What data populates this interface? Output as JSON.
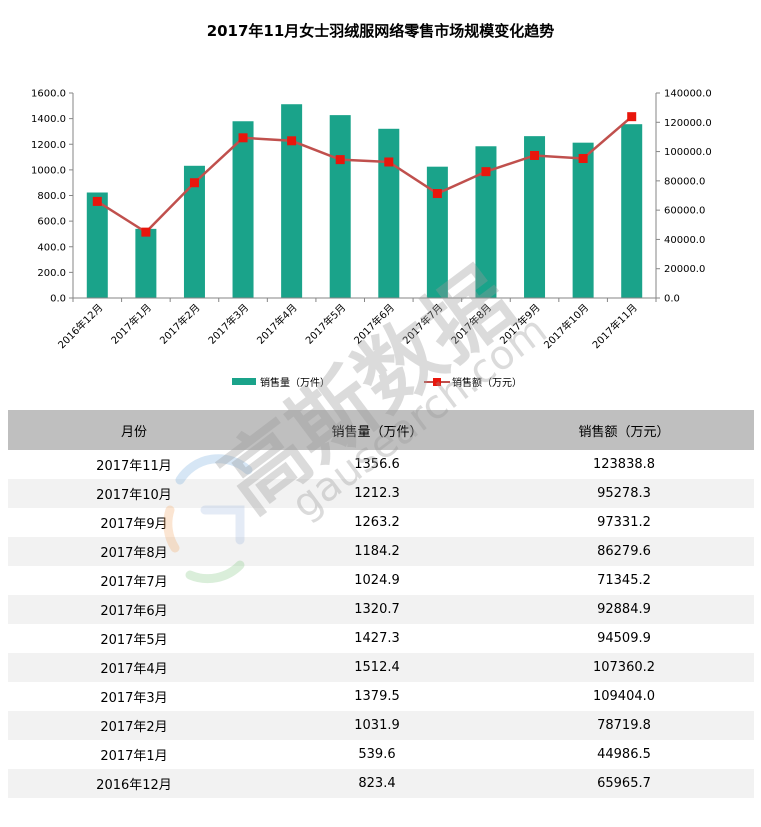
{
  "title": "2017年11月女士羽绒服网络零售市场规模变化趋势",
  "legend": {
    "bar": "销售量（万件）",
    "line": "销售额（万元）"
  },
  "table": {
    "headers": [
      "月份",
      "销售量（万件）",
      "销售额（万元）"
    ],
    "rows": [
      [
        "2017年11月",
        "1356.6",
        "123838.8"
      ],
      [
        "2017年10月",
        "1212.3",
        "95278.3"
      ],
      [
        "2017年9月",
        "1263.2",
        "97331.2"
      ],
      [
        "2017年8月",
        "1184.2",
        "86279.6"
      ],
      [
        "2017年7月",
        "1024.9",
        "71345.2"
      ],
      [
        "2017年6月",
        "1320.7",
        "92884.9"
      ],
      [
        "2017年5月",
        "1427.3",
        "94509.9"
      ],
      [
        "2017年4月",
        "1512.4",
        "107360.2"
      ],
      [
        "2017年3月",
        "1379.5",
        "109404.0"
      ],
      [
        "2017年2月",
        "1031.9",
        "78719.8"
      ],
      [
        "2017年1月",
        "539.6",
        "44986.5"
      ],
      [
        "2016年12月",
        "823.4",
        "65965.7"
      ]
    ]
  },
  "watermark": {
    "brand": "高斯数据",
    "site": "gausearch.com"
  },
  "chart_data": {
    "type": "bar",
    "title": "2017年11月女士羽绒服网络零售市场规模变化趋势",
    "categories": [
      "2016年12月",
      "2017年1月",
      "2017年2月",
      "2017年3月",
      "2017年4月",
      "2017年5月",
      "2017年6月",
      "2017年7月",
      "2017年8月",
      "2017年9月",
      "2017年10月",
      "2017年11月"
    ],
    "series": [
      {
        "name": "销售量（万件）",
        "type": "bar",
        "axis": "left",
        "color": "#1aa38a",
        "values": [
          823.4,
          539.6,
          1031.9,
          1379.5,
          1512.4,
          1427.3,
          1320.7,
          1024.9,
          1184.2,
          1263.2,
          1212.3,
          1356.6
        ]
      },
      {
        "name": "销售额（万元）",
        "type": "line",
        "axis": "right",
        "color": "#c0504d",
        "marker_color": "#e8160c",
        "values": [
          65965.7,
          44986.5,
          78719.8,
          109404.0,
          107360.2,
          94509.9,
          92884.9,
          71345.2,
          86279.6,
          97331.2,
          95278.3,
          123838.8
        ]
      }
    ],
    "ylim_left": [
      0,
      1600
    ],
    "yticks_left": [
      "0.0",
      "200.0",
      "400.0",
      "600.0",
      "800.0",
      "1000.0",
      "1200.0",
      "1400.0",
      "1600.0"
    ],
    "ylim_right": [
      0,
      140000
    ],
    "yticks_right": [
      "0.0",
      "20000.0",
      "40000.0",
      "60000.0",
      "80000.0",
      "100000.0",
      "120000.0",
      "140000.0"
    ],
    "grid": false,
    "legend_position": "bottom"
  }
}
